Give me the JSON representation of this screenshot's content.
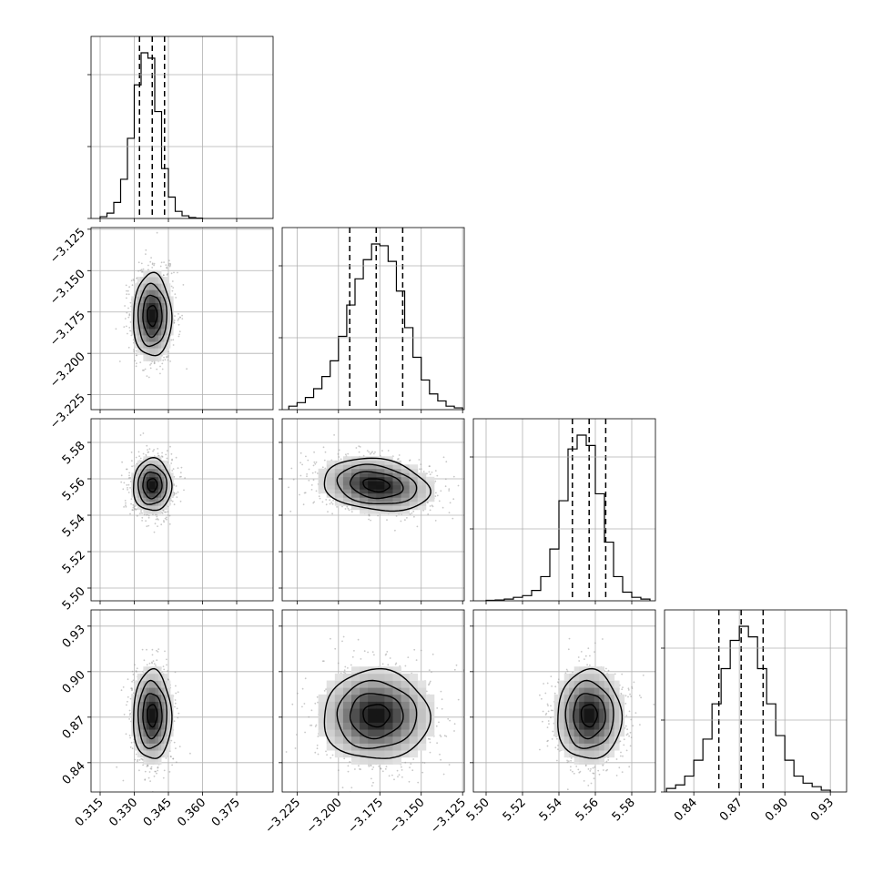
{
  "chart_data": {
    "type": "corner",
    "parameters": 4,
    "grid": true,
    "x_ranges": [
      [
        0.311,
        0.391
      ],
      [
        -3.234,
        -3.124
      ],
      [
        5.493,
        5.593
      ],
      [
        0.8207,
        0.9407
      ]
    ],
    "y_ranges": [
      null,
      [
        -3.234,
        -3.124
      ],
      [
        5.493,
        5.593
      ],
      [
        0.8207,
        0.9407
      ]
    ],
    "tick_labels": {
      "p0": [
        "0.315",
        "0.330",
        "0.345",
        "0.360",
        "0.375"
      ],
      "p1": [
        "−3.225",
        "−3.200",
        "−3.175",
        "−3.150",
        "−3.125"
      ],
      "p2": [
        "5.50",
        "5.52",
        "5.54",
        "5.56",
        "5.58"
      ],
      "p3": [
        "0.84",
        "0.87",
        "0.90",
        "0.93"
      ]
    },
    "ticks": {
      "p0": [
        0.315,
        0.33,
        0.345,
        0.36,
        0.375
      ],
      "p1": [
        -3.225,
        -3.2,
        -3.175,
        -3.15,
        -3.125
      ],
      "p2": [
        5.5,
        5.52,
        5.54,
        5.56,
        5.58
      ],
      "p3": [
        0.84,
        0.87,
        0.9,
        0.93
      ]
    },
    "marginals": [
      {
        "parameter": 0,
        "bin_edges": [
          0.315,
          0.318,
          0.321,
          0.324,
          0.327,
          0.33,
          0.333,
          0.336,
          0.339,
          0.342,
          0.345,
          0.348,
          0.351,
          0.354,
          0.357,
          0.36
        ],
        "counts": [
          1,
          3,
          9,
          22,
          45,
          75,
          93,
          90,
          60,
          28,
          12,
          4,
          1.5,
          0.5,
          0.2
        ],
        "quantiles": [
          0.3323,
          0.3379,
          0.3433
        ]
      },
      {
        "parameter": 1,
        "bin_edges": [
          -3.23,
          -3.225,
          -3.22,
          -3.215,
          -3.21,
          -3.205,
          -3.2,
          -3.195,
          -3.19,
          -3.185,
          -3.18,
          -3.175,
          -3.17,
          -3.165,
          -3.16,
          -3.155,
          -3.15,
          -3.145,
          -3.14,
          -3.135,
          -3.13,
          -3.125
        ],
        "counts": [
          2,
          4,
          7,
          12,
          19,
          28,
          42,
          60,
          75,
          86,
          95,
          94,
          85,
          68,
          47,
          30,
          17,
          9,
          5,
          2,
          1
        ],
        "quantiles": [
          -3.1932,
          -3.1772,
          -3.1612
        ]
      },
      {
        "parameter": 2,
        "bin_edges": [
          5.5,
          5.505,
          5.51,
          5.515,
          5.52,
          5.525,
          5.53,
          5.535,
          5.54,
          5.545,
          5.55,
          5.555,
          5.56,
          5.565,
          5.57,
          5.575,
          5.58,
          5.585,
          5.59
        ],
        "counts": [
          0.3,
          0.5,
          1,
          2,
          3,
          6,
          14,
          30,
          58,
          88,
          96,
          90,
          62,
          34,
          14,
          5,
          2,
          1
        ],
        "quantiles": [
          5.5474,
          5.5566,
          5.5657
        ]
      },
      {
        "parameter": 3,
        "bin_edges": [
          0.822,
          0.828,
          0.834,
          0.84,
          0.846,
          0.852,
          0.858,
          0.864,
          0.87,
          0.876,
          0.882,
          0.888,
          0.894,
          0.9,
          0.906,
          0.912,
          0.918,
          0.924,
          0.93
        ],
        "counts": [
          2,
          4,
          9,
          18,
          30,
          50,
          70,
          86,
          94,
          88,
          70,
          50,
          32,
          18,
          9,
          5,
          3,
          1
        ],
        "quantiles": [
          0.8565,
          0.8712,
          0.8857
        ]
      }
    ],
    "joint": [
      {
        "x_param": 0,
        "y_param": 1,
        "center": [
          0.3379,
          -3.1772
        ],
        "sd": [
          0.0042,
          0.0125
        ],
        "rho": 0.0
      },
      {
        "x_param": 0,
        "y_param": 2,
        "center": [
          0.3379,
          5.5566
        ],
        "sd": [
          0.0042,
          0.0072
        ],
        "rho": 0.0
      },
      {
        "x_param": 1,
        "y_param": 2,
        "center": [
          -3.1772,
          5.5566
        ],
        "sd": [
          0.016,
          0.0072
        ],
        "rho": -0.2
      },
      {
        "x_param": 0,
        "y_param": 3,
        "center": [
          0.3379,
          0.8712
        ],
        "sd": [
          0.0042,
          0.0147
        ],
        "rho": 0.0
      },
      {
        "x_param": 1,
        "y_param": 3,
        "center": [
          -3.1772,
          0.8712
        ],
        "sd": [
          0.016,
          0.0147
        ],
        "rho": 0.0
      },
      {
        "x_param": 2,
        "y_param": 3,
        "center": [
          5.5566,
          0.8712
        ],
        "sd": [
          0.0088,
          0.0147
        ],
        "rho": 0.0
      }
    ],
    "contour_levels_sigma": [
      0.5,
      1.0,
      1.5,
      2.0
    ],
    "colors": {
      "histogram": "#000000",
      "quantile_line": "#000000",
      "grid": "#b0b0b0",
      "scatter": "#9a9a9a",
      "density_dark": "#111111"
    }
  }
}
